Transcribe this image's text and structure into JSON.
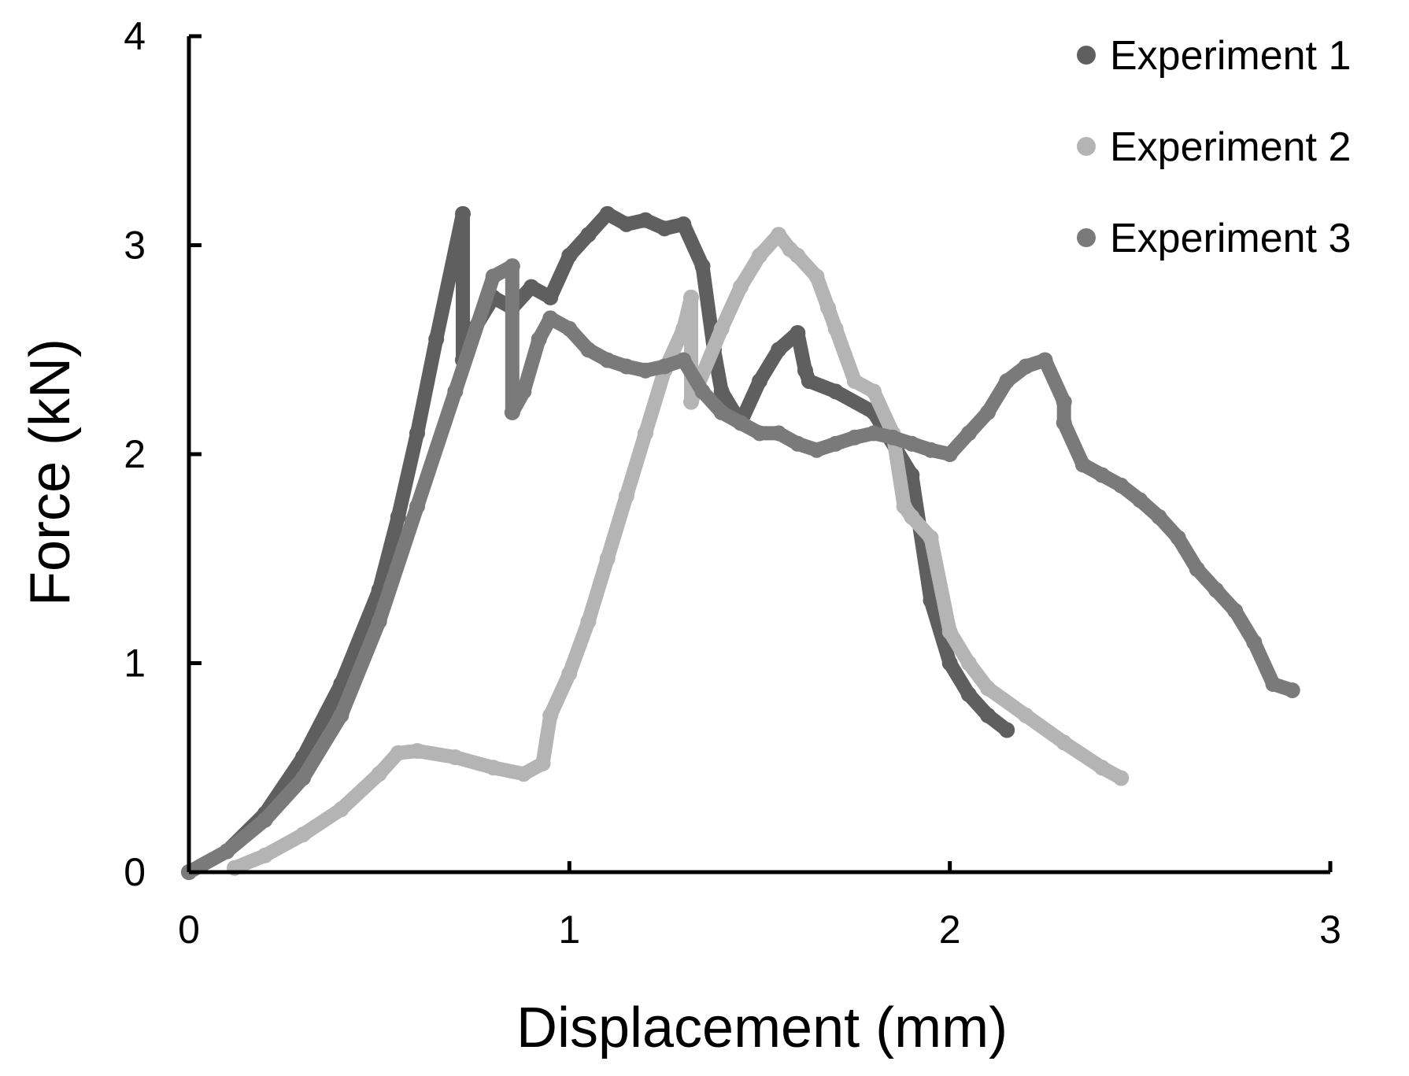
{
  "chart_data": {
    "type": "scatter",
    "title": "",
    "xlabel": "Displacement (mm)",
    "ylabel": "Force (kN)",
    "xlim": [
      0,
      3
    ],
    "ylim": [
      0,
      4
    ],
    "xticks": [
      0,
      1,
      2,
      3
    ],
    "yticks": [
      0,
      1,
      2,
      3,
      4
    ],
    "legend_position": "top-right",
    "series": [
      {
        "name": "Experiment 1",
        "color": "#5f5f5f",
        "x": [
          0.0,
          0.1,
          0.2,
          0.3,
          0.4,
          0.5,
          0.55,
          0.6,
          0.65,
          0.72,
          0.72,
          0.75,
          0.8,
          0.85,
          0.9,
          0.95,
          1.0,
          1.05,
          1.1,
          1.15,
          1.2,
          1.25,
          1.3,
          1.35,
          1.38,
          1.4,
          1.45,
          1.5,
          1.55,
          1.6,
          1.62,
          1.63,
          1.7,
          1.8,
          1.9,
          1.95,
          2.0,
          2.05,
          2.1,
          2.15
        ],
        "y": [
          0.0,
          0.1,
          0.28,
          0.55,
          0.9,
          1.35,
          1.7,
          2.1,
          2.55,
          3.15,
          2.45,
          2.6,
          2.75,
          2.7,
          2.8,
          2.75,
          2.95,
          3.05,
          3.15,
          3.1,
          3.12,
          3.08,
          3.1,
          2.9,
          2.5,
          2.3,
          2.15,
          2.35,
          2.5,
          2.58,
          2.4,
          2.35,
          2.3,
          2.2,
          1.9,
          1.3,
          1.0,
          0.85,
          0.75,
          0.68
        ]
      },
      {
        "name": "Experiment 2",
        "color": "#b4b4b4",
        "x": [
          0.12,
          0.2,
          0.3,
          0.4,
          0.5,
          0.55,
          0.6,
          0.7,
          0.8,
          0.88,
          0.93,
          0.95,
          1.0,
          1.05,
          1.1,
          1.15,
          1.2,
          1.25,
          1.3,
          1.32,
          1.32,
          1.4,
          1.45,
          1.5,
          1.55,
          1.58,
          1.6,
          1.65,
          1.68,
          1.7,
          1.75,
          1.8,
          1.85,
          1.88,
          1.9,
          1.95,
          2.0,
          2.05,
          2.1,
          2.2,
          2.3,
          2.4,
          2.45
        ],
        "y": [
          0.02,
          0.08,
          0.18,
          0.3,
          0.47,
          0.57,
          0.58,
          0.55,
          0.5,
          0.47,
          0.52,
          0.75,
          0.95,
          1.2,
          1.5,
          1.8,
          2.1,
          2.4,
          2.6,
          2.75,
          2.25,
          2.6,
          2.8,
          2.95,
          3.05,
          2.98,
          2.95,
          2.85,
          2.7,
          2.6,
          2.35,
          2.3,
          2.1,
          1.75,
          1.7,
          1.6,
          1.15,
          1.0,
          0.88,
          0.75,
          0.62,
          0.5,
          0.45
        ]
      },
      {
        "name": "Experiment 3",
        "color": "#7a7a7a",
        "x": [
          0.0,
          0.1,
          0.2,
          0.3,
          0.4,
          0.5,
          0.6,
          0.7,
          0.8,
          0.85,
          0.85,
          0.88,
          0.92,
          0.95,
          1.0,
          1.05,
          1.1,
          1.15,
          1.2,
          1.25,
          1.3,
          1.35,
          1.4,
          1.45,
          1.5,
          1.55,
          1.6,
          1.65,
          1.7,
          1.75,
          1.8,
          1.85,
          1.9,
          1.95,
          2.0,
          2.05,
          2.1,
          2.15,
          2.2,
          2.25,
          2.3,
          2.3,
          2.35,
          2.4,
          2.45,
          2.5,
          2.55,
          2.6,
          2.65,
          2.7,
          2.75,
          2.8,
          2.85,
          2.9
        ],
        "y": [
          0.0,
          0.1,
          0.25,
          0.45,
          0.75,
          1.2,
          1.75,
          2.3,
          2.85,
          2.9,
          2.2,
          2.3,
          2.55,
          2.65,
          2.6,
          2.5,
          2.45,
          2.42,
          2.4,
          2.42,
          2.45,
          2.3,
          2.2,
          2.15,
          2.1,
          2.1,
          2.05,
          2.02,
          2.05,
          2.08,
          2.1,
          2.08,
          2.05,
          2.02,
          2.0,
          2.1,
          2.2,
          2.35,
          2.42,
          2.45,
          2.25,
          2.15,
          1.95,
          1.9,
          1.85,
          1.78,
          1.7,
          1.6,
          1.45,
          1.35,
          1.25,
          1.1,
          0.9,
          0.87
        ]
      }
    ]
  }
}
